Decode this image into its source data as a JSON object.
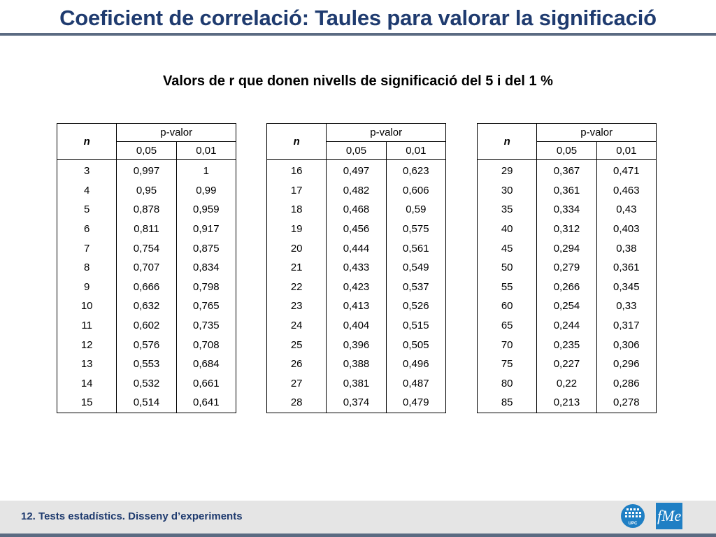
{
  "slide": {
    "title": "Coeficient de correlació: Taules para valorar la significació",
    "subtitle": "Valors de r que donen nivells de significació del 5 i del 1 %"
  },
  "table_header": {
    "n_label": "n",
    "pvalue_label": "p-valor",
    "col_005": "0,05",
    "col_001": "0,01"
  },
  "tables": [
    {
      "rows": [
        [
          "3",
          "0,997",
          "1"
        ],
        [
          "4",
          "0,95",
          "0,99"
        ],
        [
          "5",
          "0,878",
          "0,959"
        ],
        [
          "6",
          "0,811",
          "0,917"
        ],
        [
          "7",
          "0,754",
          "0,875"
        ],
        [
          "8",
          "0,707",
          "0,834"
        ],
        [
          "9",
          "0,666",
          "0,798"
        ],
        [
          "10",
          "0,632",
          "0,765"
        ],
        [
          "11",
          "0,602",
          "0,735"
        ],
        [
          "12",
          "0,576",
          "0,708"
        ],
        [
          "13",
          "0,553",
          "0,684"
        ],
        [
          "14",
          "0,532",
          "0,661"
        ],
        [
          "15",
          "0,514",
          "0,641"
        ]
      ]
    },
    {
      "rows": [
        [
          "16",
          "0,497",
          "0,623"
        ],
        [
          "17",
          "0,482",
          "0,606"
        ],
        [
          "18",
          "0,468",
          "0,59"
        ],
        [
          "19",
          "0,456",
          "0,575"
        ],
        [
          "20",
          "0,444",
          "0,561"
        ],
        [
          "21",
          "0,433",
          "0,549"
        ],
        [
          "22",
          "0,423",
          "0,537"
        ],
        [
          "23",
          "0,413",
          "0,526"
        ],
        [
          "24",
          "0,404",
          "0,515"
        ],
        [
          "25",
          "0,396",
          "0,505"
        ],
        [
          "26",
          "0,388",
          "0,496"
        ],
        [
          "27",
          "0,381",
          "0,487"
        ],
        [
          "28",
          "0,374",
          "0,479"
        ]
      ]
    },
    {
      "rows": [
        [
          "29",
          "0,367",
          "0,471"
        ],
        [
          "30",
          "0,361",
          "0,463"
        ],
        [
          "35",
          "0,334",
          "0,43"
        ],
        [
          "40",
          "0,312",
          "0,403"
        ],
        [
          "45",
          "0,294",
          "0,38"
        ],
        [
          "50",
          "0,279",
          "0,361"
        ],
        [
          "55",
          "0,266",
          "0,345"
        ],
        [
          "60",
          "0,254",
          "0,33"
        ],
        [
          "65",
          "0,244",
          "0,317"
        ],
        [
          "70",
          "0,235",
          "0,306"
        ],
        [
          "75",
          "0,227",
          "0,296"
        ],
        [
          "80",
          "0,22",
          "0,286"
        ],
        [
          "85",
          "0,213",
          "0,278"
        ]
      ]
    }
  ],
  "footer": {
    "text": "12. Tests estadístics. Disseny d’experiments",
    "logo_upc": "upc-logo",
    "logo_upc_text": "UPC",
    "logo_fme": "fme-logo",
    "logo_fme_text": "fMe"
  },
  "colors": {
    "title": "#1f3b6f",
    "rule": "#5b6b82",
    "footer_bg": "#e5e5e5",
    "fme_bg": "#1f7fc4"
  }
}
